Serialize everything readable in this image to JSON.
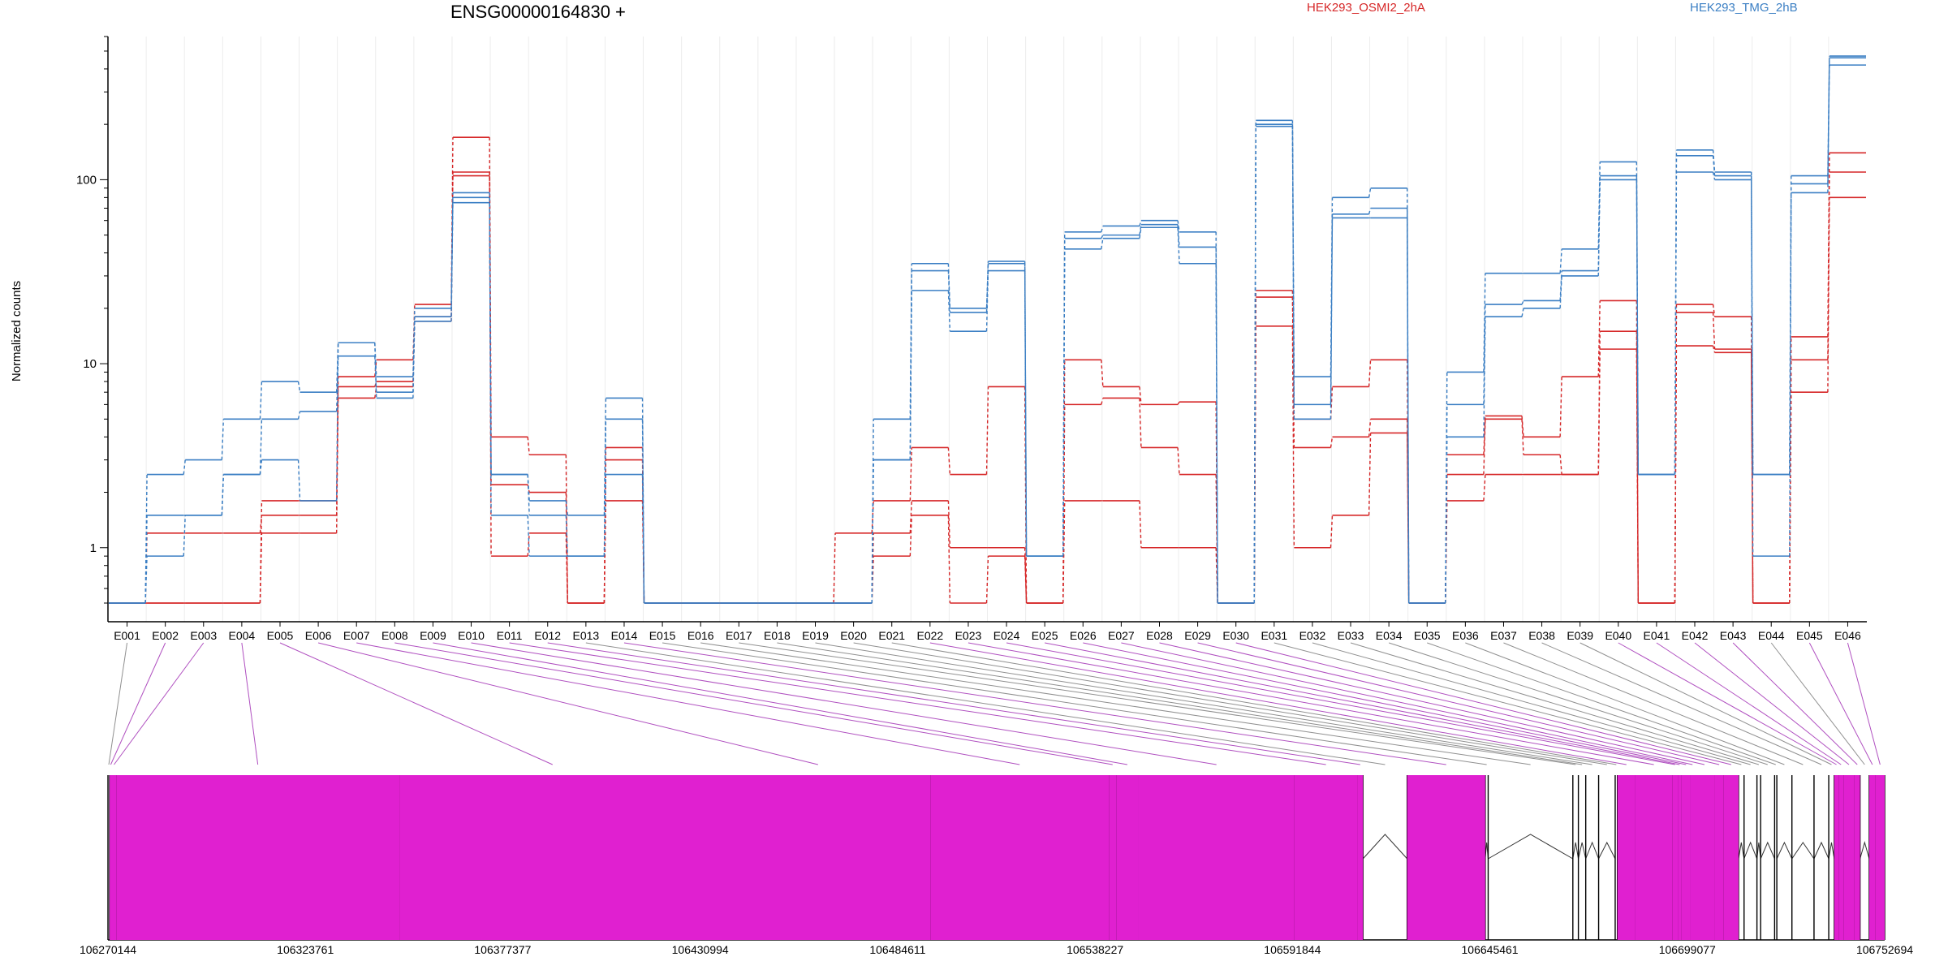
{
  "chart_data": {
    "type": "line",
    "title": "ENSG00000164830 +",
    "xlabel": "",
    "ylabel": "Normalized counts",
    "yscale": "log",
    "ylim": [
      0.5,
      600
    ],
    "yticks": [
      1,
      10,
      100
    ],
    "ytick_labels": [
      "1",
      "10",
      "100"
    ],
    "grid": "vertical only",
    "legend_position": "top",
    "categories": [
      "E001",
      "E002",
      "E003",
      "E004",
      "E005",
      "E006",
      "E007",
      "E008",
      "E009",
      "E010",
      "E011",
      "E012",
      "E013",
      "E014",
      "E015",
      "E016",
      "E017",
      "E018",
      "E019",
      "E020",
      "E021",
      "E022",
      "E023",
      "E024",
      "E025",
      "E026",
      "E027",
      "E028",
      "E029",
      "E030",
      "E031",
      "E032",
      "E033",
      "E034",
      "E035",
      "E036",
      "E037",
      "E038",
      "E039",
      "E040",
      "E041",
      "E042",
      "E043",
      "E044",
      "E045",
      "E046"
    ],
    "groups": [
      {
        "name": "HEK293_OSMI2_2hA",
        "color": "#d62728"
      },
      {
        "name": "HEK293_TMG_2hB",
        "color": "#3b7fc4"
      }
    ],
    "series": [
      {
        "group": 0,
        "values": [
          0.5,
          1.2,
          1.2,
          1.2,
          1.5,
          1.5,
          8.5,
          10.5,
          21,
          170,
          4,
          3.2,
          0.5,
          3.5,
          0.5,
          0.5,
          0.5,
          0.5,
          0.5,
          1.2,
          1.8,
          3.5,
          2.5,
          7.5,
          0.5,
          10.5,
          7.5,
          6,
          6.2,
          0.5,
          25,
          5,
          7.5,
          10.5,
          0.5,
          3.2,
          5.2,
          4,
          8.5,
          22,
          0.5,
          21,
          18,
          0.5,
          14,
          140
        ]
      },
      {
        "group": 0,
        "values": [
          0.5,
          0.5,
          0.5,
          0.5,
          1.8,
          1.8,
          7.5,
          8,
          18,
          110,
          2.2,
          2,
          0.5,
          3,
          0.5,
          0.5,
          0.5,
          0.5,
          0.5,
          0.5,
          1.2,
          1.8,
          1,
          1,
          0.5,
          6,
          6.5,
          3.5,
          2.5,
          0.5,
          23,
          3.5,
          4,
          5,
          0.5,
          2.5,
          5,
          3.2,
          2.5,
          15,
          0.5,
          19,
          12,
          0.5,
          10.5,
          110
        ]
      },
      {
        "group": 0,
        "values": [
          0.5,
          0.5,
          0.5,
          0.5,
          1.2,
          1.2,
          6.5,
          7.5,
          17,
          105,
          0.9,
          1.2,
          0.5,
          1.8,
          0.5,
          0.5,
          0.5,
          0.5,
          0.5,
          0.5,
          0.9,
          1.5,
          0.5,
          0.9,
          0.5,
          1.8,
          1.8,
          1,
          1,
          0.5,
          16,
          1,
          1.5,
          4.2,
          0.5,
          1.8,
          2.5,
          2.5,
          2.5,
          12,
          0.5,
          12.5,
          11.5,
          0.5,
          7,
          80
        ]
      },
      {
        "group": 1,
        "values": [
          0.5,
          2.5,
          3,
          5,
          8,
          7,
          13,
          8.5,
          20,
          85,
          2.5,
          1.8,
          1.5,
          6.5,
          0.5,
          0.5,
          0.5,
          0.5,
          0.5,
          0.5,
          5,
          35,
          20,
          36,
          0.9,
          52,
          56,
          60,
          52,
          0.5,
          210,
          8.5,
          80,
          90,
          0.5,
          9,
          31,
          31,
          42,
          125,
          2.5,
          145,
          110,
          2.5,
          105,
          470
        ]
      },
      {
        "group": 1,
        "values": [
          0.5,
          1.5,
          1.5,
          2.5,
          5,
          5.5,
          11,
          7,
          18,
          80,
          2.5,
          1.5,
          0.9,
          5,
          0.5,
          0.5,
          0.5,
          0.5,
          0.5,
          0.5,
          3,
          32,
          19,
          35,
          0.9,
          48,
          50,
          57,
          43,
          0.5,
          200,
          6,
          65,
          70,
          0.5,
          6,
          21,
          22,
          32,
          105,
          2.5,
          135,
          105,
          2.5,
          95,
          460
        ]
      },
      {
        "group": 1,
        "values": [
          0.5,
          0.9,
          1.5,
          2.5,
          3,
          1.8,
          13,
          6.5,
          17,
          75,
          1.5,
          0.9,
          0.9,
          2.5,
          0.5,
          0.5,
          0.5,
          0.5,
          0.5,
          0.5,
          3,
          25,
          15,
          32,
          0.9,
          42,
          48,
          55,
          35,
          0.5,
          195,
          5,
          62,
          62,
          0.5,
          4,
          18,
          20,
          30,
          100,
          2.5,
          110,
          100,
          0.9,
          85,
          420
        ]
      }
    ],
    "gene_track": {
      "coordinate_labels": [
        "106270144",
        "106323761",
        "106377377",
        "106430994",
        "106484611",
        "106538227",
        "106591844",
        "106645461",
        "106699077",
        "106752694"
      ],
      "exon_edges": [
        106270144,
        106270600,
        106271200,
        106272400,
        106349300,
        106432500,
        106493500,
        106542000,
        106544000,
        106550000,
        106592400,
        106609500,
        106611000,
        106623000,
        106644200,
        106645000,
        106668000,
        106669500,
        106671500,
        106675000,
        106679500,
        106680100,
        106685000,
        106695000,
        106696500,
        106697500,
        106700000,
        106701000,
        106706500,
        106709000,
        106713000,
        106714500,
        106718000,
        106719000,
        106722800,
        106723400,
        106727500,
        106733500,
        106737500,
        106739000,
        106740200,
        106741500,
        106744500,
        106746000,
        106748500,
        106750200,
        106752694
      ],
      "highlighted_exons": [
        "E002",
        "E003",
        "E004",
        "E005",
        "E006",
        "E007",
        "E008",
        "E009",
        "E010",
        "E011",
        "E012",
        "E014",
        "E022",
        "E023",
        "E024",
        "E025",
        "E026",
        "E027",
        "E028",
        "E029",
        "E030",
        "E040",
        "E041",
        "E042",
        "E043",
        "E045",
        "E046"
      ],
      "exon_color": "#e020d0",
      "link_color_highlighted": "#b050c0",
      "link_color_normal": "#909090"
    }
  }
}
